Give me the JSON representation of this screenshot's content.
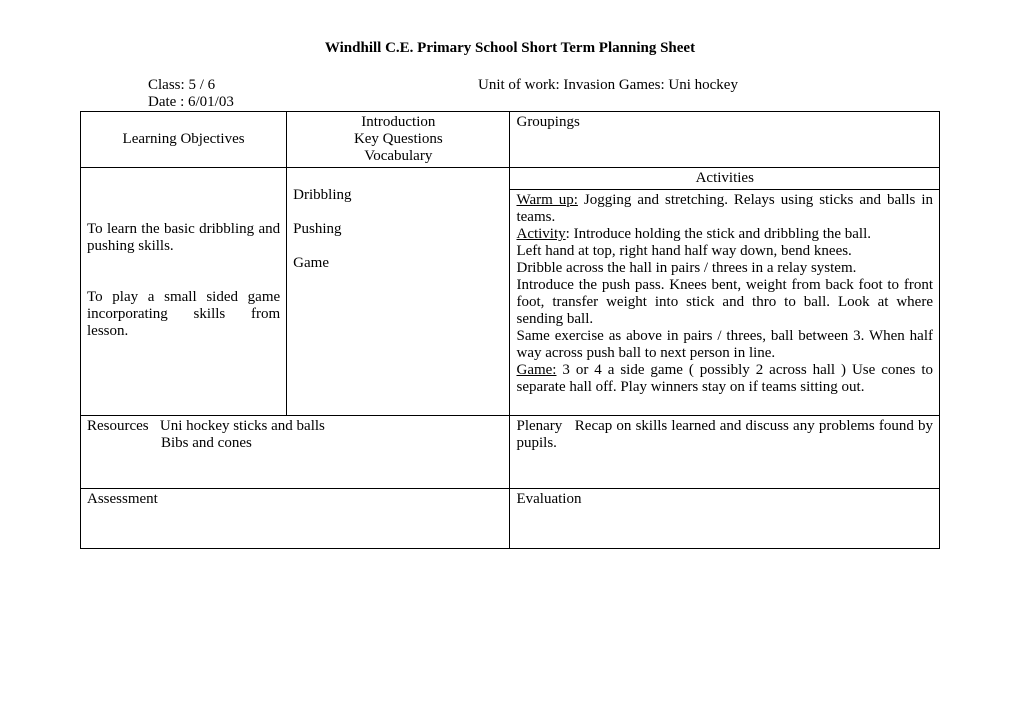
{
  "title": "Windhill C.E. Primary School Short Term Planning Sheet",
  "meta": {
    "class_label": "Class:",
    "class_value": "5 / 6",
    "unit_label": "Unit of work:",
    "unit_value": "Invasion Games: Uni hockey",
    "date_label": "Date :",
    "date_value": "6/01/03"
  },
  "headers": {
    "learning_objectives": "Learning Objectives",
    "intro_line1": "Introduction",
    "intro_line2": "Key Questions",
    "intro_line3": "Vocabulary",
    "groupings": "Groupings",
    "activities": "Activities"
  },
  "row1": {
    "obj1": "To learn the basic dribbling and pushing skills.",
    "obj2": "To play a small sided game incorporating skills from lesson.",
    "kw1": "Dribbling",
    "kw2": "Pushing",
    "kw3": "Game",
    "warmup_label": "Warm up:",
    "warmup_text": " Jogging and stretching. Relays using sticks and balls in teams.",
    "activity_label": "Activity",
    "activity_text": ": Introduce holding the stick and dribbling the ball.",
    "line3": "Left hand at top, right hand half way down, bend knees.",
    "line4": "Dribble across the hall in pairs / threes in a relay system.",
    "line5": "Introduce the push pass. Knees bent, weight from back foot to front foot, transfer weight into stick and thro to ball. Look at where sending ball.",
    "line6": "Same exercise as above in pairs / threes, ball between 3. When half way across push ball to next person in line.",
    "game_label": "Game:",
    "game_text": "  3 or 4 a side game ( possibly 2 across hall ) Use cones to separate hall off. Play winners stay on if teams sitting out."
  },
  "row2": {
    "resources_label": "Resources",
    "resources_line1": "Uni hockey sticks and balls",
    "resources_line2": "Bibs and cones",
    "plenary_label": "Plenary",
    "plenary_text": "Recap on skills learned and discuss any problems found by pupils."
  },
  "row3": {
    "assessment": "Assessment",
    "evaluation": "Evaluation"
  }
}
